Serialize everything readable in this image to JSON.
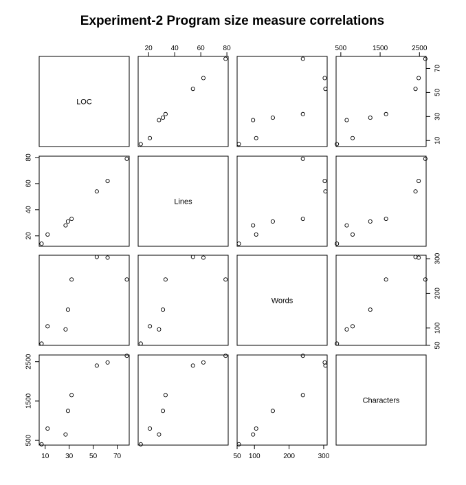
{
  "chart_data": {
    "type": "scatter",
    "subtype": "scatterplot-matrix",
    "title": "Experiment-2 Program size measure correlations",
    "variables": [
      {
        "name": "LOC",
        "values": [
          7,
          12,
          27,
          29,
          32,
          53,
          62,
          78
        ],
        "lim": [
          5,
          80
        ],
        "ticks": [
          10,
          30,
          50,
          70
        ],
        "tick_labels": [
          "10",
          "30",
          "50",
          "70"
        ]
      },
      {
        "name": "Lines",
        "values": [
          14,
          21,
          28,
          31,
          33,
          54,
          62,
          79
        ],
        "lim": [
          12,
          81
        ],
        "ticks": [
          20,
          40,
          60,
          80
        ],
        "tick_labels": [
          "20",
          "40",
          "60",
          "80"
        ]
      },
      {
        "name": "Words",
        "values": [
          55,
          105,
          96,
          153,
          240,
          305,
          303,
          240
        ],
        "lim": [
          50,
          310
        ],
        "ticks": [
          50,
          100,
          200,
          300
        ],
        "tick_labels": [
          "50",
          "100",
          "200",
          "300"
        ]
      },
      {
        "name": "Characters",
        "values": [
          400,
          800,
          650,
          1250,
          1650,
          2400,
          2480,
          2650
        ],
        "lim": [
          380,
          2670
        ],
        "ticks": [
          500,
          1500,
          2500
        ],
        "tick_labels": [
          "500",
          "1500",
          "2500"
        ]
      }
    ],
    "top_axis": [
      {
        "ticks": [
          20,
          40,
          60,
          80
        ],
        "tick_labels": [
          "20",
          "40",
          "60",
          "80"
        ]
      },
      null,
      {
        "ticks": [
          500,
          1500,
          2500
        ],
        "tick_labels": [
          "500",
          "1500",
          "2500"
        ]
      }
    ],
    "right_axis": [
      {
        "ticks": [
          10,
          30,
          50,
          70
        ],
        "tick_labels": [
          "10",
          "30",
          "50",
          "70"
        ]
      },
      null,
      {
        "ticks": [
          50,
          100,
          200,
          300
        ],
        "tick_labels": [
          "50",
          "100",
          "200",
          "300"
        ]
      }
    ],
    "bottom_axis": [
      {
        "ticks": [
          10,
          30,
          50,
          70
        ],
        "tick_labels": [
          "10",
          "30",
          "50",
          "70"
        ]
      },
      null,
      {
        "ticks": [
          50,
          100,
          200,
          300
        ],
        "tick_labels": [
          "50",
          "100",
          "200",
          "300"
        ]
      }
    ],
    "left_axis": [
      null,
      {
        "ticks": [
          20,
          40,
          60,
          80
        ],
        "tick_labels": [
          "20",
          "40",
          "60",
          "80"
        ]
      },
      null,
      {
        "ticks": [
          500,
          1500,
          2500
        ],
        "tick_labels": [
          "500",
          "1500",
          "2500"
        ]
      }
    ],
    "grid": false,
    "legend": "none"
  }
}
